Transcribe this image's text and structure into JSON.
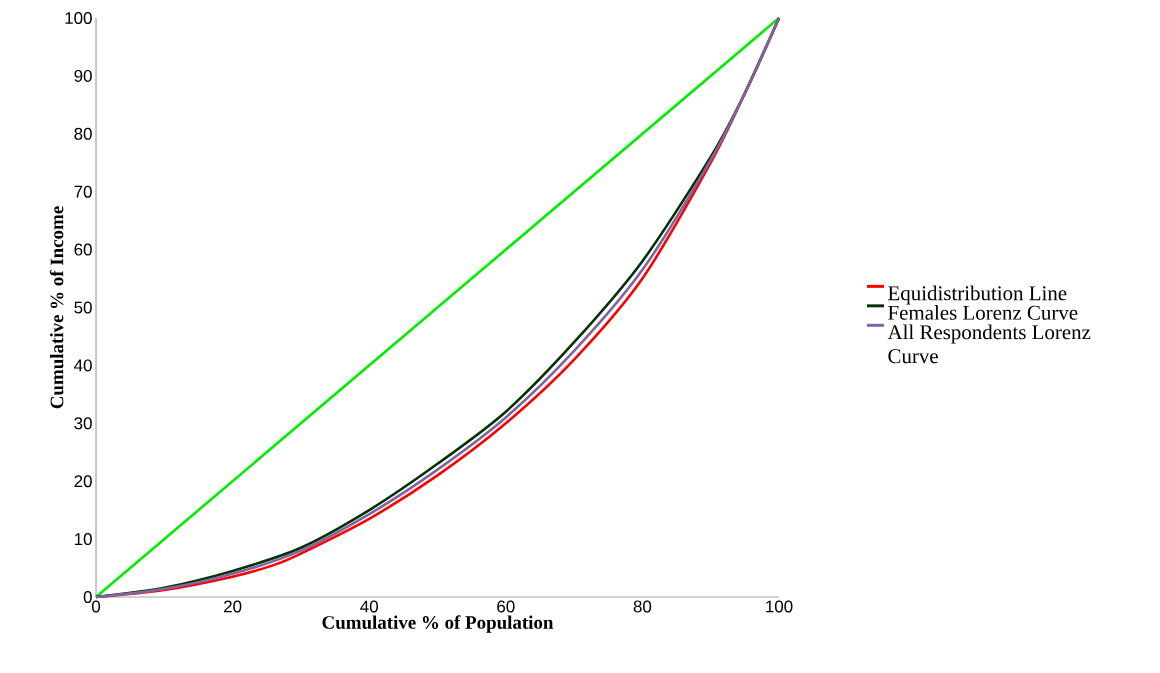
{
  "chart_data": {
    "type": "line",
    "xlabel": "Cumulative % of Population",
    "ylabel": "Cumulative % of Income",
    "xlim": [
      0,
      100
    ],
    "ylim": [
      0,
      100
    ],
    "xticks": [
      0,
      20,
      40,
      60,
      80,
      100
    ],
    "yticks": [
      0,
      10,
      20,
      30,
      40,
      50,
      60,
      70,
      80,
      90,
      100
    ],
    "grid": false,
    "legend": "right",
    "marker": "none",
    "line_style": "solid",
    "series": [
      {
        "color": "#00ee00",
        "x": [
          0,
          100
        ],
        "values": [
          0,
          100
        ]
      },
      {
        "name": "Equidistribution Line",
        "color": "#ff0000",
        "x": [
          0,
          10,
          20,
          26,
          30,
          40,
          50,
          60,
          70,
          80,
          90,
          95,
          100
        ],
        "values": [
          0,
          1.2,
          3.5,
          5.5,
          7.5,
          13.5,
          21,
          30,
          41,
          55,
          75,
          87,
          100
        ]
      },
      {
        "name": "Females Lorenz Curve",
        "color": "#003300",
        "x": [
          0,
          10,
          20,
          30,
          40,
          50,
          60,
          70,
          80,
          90,
          95,
          100
        ],
        "values": [
          0,
          1.6,
          4.5,
          8.5,
          15,
          23,
          32,
          44,
          58,
          76,
          87,
          100
        ]
      },
      {
        "name": "All Respondents Lorenz Curve",
        "color": "#8064a2",
        "x": [
          0,
          10,
          20,
          30,
          40,
          50,
          60,
          70,
          80,
          90,
          95,
          100
        ],
        "values": [
          0,
          1.4,
          4,
          8,
          14.3,
          22,
          31,
          42.5,
          56.5,
          75.5,
          87,
          100
        ]
      }
    ]
  }
}
